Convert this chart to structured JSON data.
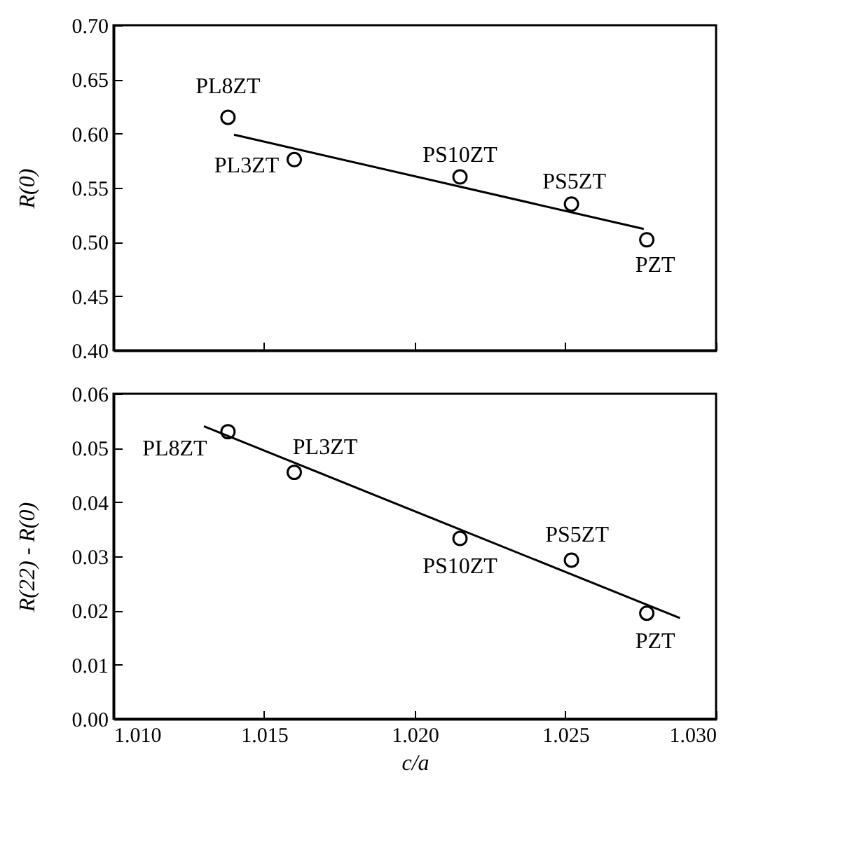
{
  "chart_data": [
    {
      "type": "scatter",
      "ylabel": "R(0)",
      "xlim": [
        1.01,
        1.03
      ],
      "xticks": [
        1.01,
        1.015,
        1.02,
        1.025,
        1.03
      ],
      "ylim": [
        0.4,
        0.7
      ],
      "yticks": [
        {
          "value": 0.4,
          "label": "0.40"
        },
        0.45,
        {
          "value": 0.5,
          "label": "0.50"
        },
        0.55,
        {
          "value": 0.6,
          "label": "0.60"
        },
        0.65,
        {
          "value": 0.7,
          "label": "0.70"
        }
      ],
      "tick_labels": "y",
      "grid": false,
      "series": [
        {
          "type": "scatter",
          "color": "#000000",
          "marker": "circle",
          "x": [
            1.0138,
            1.016,
            1.0215,
            1.0252,
            1.0277
          ],
          "values": [
            0.615,
            0.576,
            0.56,
            0.535,
            0.502
          ]
        },
        {
          "type": "line",
          "color": "#000000",
          "marker": "none",
          "x": [
            1.014,
            1.0276
          ],
          "values": [
            0.599,
            0.512
          ]
        }
      ],
      "annotations": [
        {
          "text": "PL8ZT",
          "x": 1.0138,
          "y": 0.615
        },
        {
          "text": "PL3ZT",
          "x": 1.016,
          "y": 0.576
        },
        {
          "text": "PS10ZT",
          "x": 1.0215,
          "y": 0.56
        },
        {
          "text": "PS5ZT",
          "x": 1.0252,
          "y": 0.535
        },
        {
          "text": "PZT",
          "x": 1.0277,
          "y": 0.502
        }
      ]
    },
    {
      "type": "scatter",
      "xlabel": "c/a",
      "ylabel": "R(22) - R(0)",
      "xlim": [
        1.01,
        1.03
      ],
      "xticks": [
        {
          "value": 1.01,
          "label": "1.010"
        },
        1.015,
        {
          "value": 1.02,
          "label": "1.020"
        },
        1.025,
        {
          "value": 1.03,
          "label": "1.030"
        }
      ],
      "ylim": [
        0.0,
        0.06
      ],
      "yticks": [
        {
          "value": 0,
          "label": "0.00"
        },
        0.01,
        0.02,
        0.03,
        0.04,
        0.05,
        0.06
      ],
      "grid": false,
      "series": [
        {
          "type": "scatter",
          "color": "#000000",
          "marker": "circle",
          "x": [
            1.0138,
            1.016,
            1.0215,
            1.0252,
            1.0277
          ],
          "values": [
            0.053,
            0.0455,
            0.0333,
            0.0293,
            0.0195
          ]
        },
        {
          "type": "line",
          "color": "#000000",
          "marker": "none",
          "x": [
            1.013,
            1.0288
          ],
          "values": [
            0.054,
            0.0186
          ]
        }
      ],
      "annotations": [
        {
          "text": "PL8ZT",
          "x": 1.0138,
          "y": 0.053
        },
        {
          "text": "PL3ZT",
          "x": 1.016,
          "y": 0.0455
        },
        {
          "text": "PS10ZT",
          "x": 1.0215,
          "y": 0.0333
        },
        {
          "text": "PS5ZT",
          "x": 1.0252,
          "y": 0.0293
        },
        {
          "text": "PZT",
          "x": 1.0277,
          "y": 0.0195
        }
      ]
    }
  ]
}
